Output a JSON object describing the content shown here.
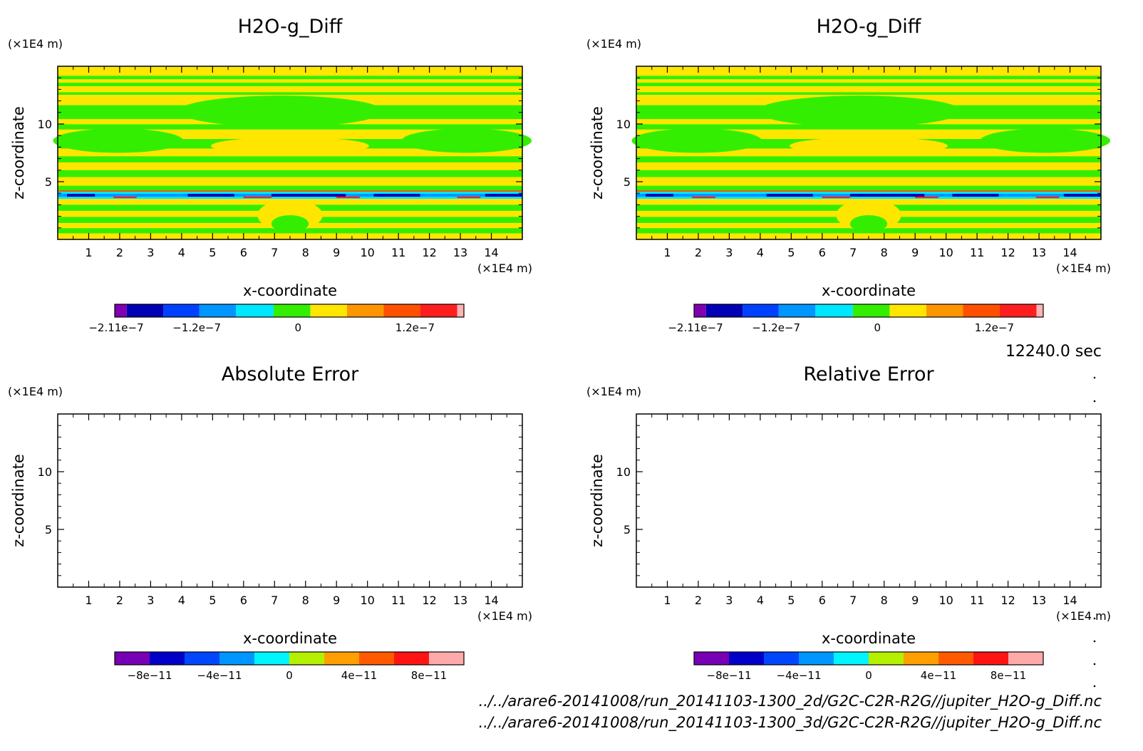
{
  "panels": [
    {
      "title": "H2O-g_Diff",
      "xlabel": "x-coordinate",
      "ylabel": "z-coordinate",
      "x_unit": "(×1E4 m)",
      "y_unit": "(×1E4 m)",
      "x_ticks": [
        "1",
        "2",
        "3",
        "4",
        "5",
        "6",
        "7",
        "8",
        "9",
        "10",
        "11",
        "12",
        "13",
        "14"
      ],
      "y_ticks": [
        "5",
        "10"
      ],
      "colorbar_labels": [
        "−2.11e−7",
        "−1.2e−7",
        "0",
        "1.2e−7"
      ],
      "filled": true
    },
    {
      "title": "H2O-g_Diff",
      "xlabel": "x-coordinate",
      "ylabel": "z-coordinate",
      "x_unit": "(×1E4 m)",
      "y_unit": "(×1E4 m)",
      "x_ticks": [
        "1",
        "2",
        "3",
        "4",
        "5",
        "6",
        "7",
        "8",
        "9",
        "10",
        "11",
        "12",
        "13",
        "14"
      ],
      "y_ticks": [
        "5",
        "10"
      ],
      "colorbar_labels": [
        "−2.11e−7",
        "−1.2e−7",
        "0",
        "1.2e−7"
      ],
      "filled": true
    },
    {
      "title": "Absolute Error",
      "xlabel": "x-coordinate",
      "ylabel": "z-coordinate",
      "x_unit": "(×1E4 m)",
      "y_unit": "(×1E4 m)",
      "x_ticks": [
        "1",
        "2",
        "3",
        "4",
        "5",
        "6",
        "7",
        "8",
        "9",
        "10",
        "11",
        "12",
        "13",
        "14"
      ],
      "y_ticks": [
        "5",
        "10"
      ],
      "colorbar_labels": [
        "−8e−11",
        "−4e−11",
        "0",
        "4e−11",
        "8e−11"
      ],
      "filled": false
    },
    {
      "title": "Relative Error",
      "xlabel": "x-coordinate",
      "ylabel": "z-coordinate",
      "x_unit": "(×1E4 m)",
      "y_unit": "(×1E4 m)",
      "x_ticks": [
        "1",
        "2",
        "3",
        "4",
        "5",
        "6",
        "7",
        "8",
        "9",
        "10",
        "11",
        "12",
        "13",
        "14"
      ],
      "y_ticks": [
        "5",
        "10"
      ],
      "colorbar_labels": [
        "−8e−11",
        "−4e−11",
        "0",
        "4e−11",
        "8e−11"
      ],
      "filled": false
    }
  ],
  "time_label": "12240.0 sec",
  "file_paths": [
    "../../arare6-20141008/run_20141103-1300_2d/G2C-C2R-R2G//jupiter_H2O-g_Diff.nc",
    "../../arare6-20141008/run_20141103-1300_3d/G2C-C2R-R2G//jupiter_H2O-g_Diff.nc"
  ],
  "colors": {
    "diff_colorbar": [
      "#8000b0",
      "#0000b4",
      "#0040ff",
      "#0096ff",
      "#00e6ff",
      "#33ee00",
      "#ffe600",
      "#ff9600",
      "#ff5000",
      "#ff1e1e",
      "#ffb4b4"
    ],
    "error_colorbar": [
      "#7800b4",
      "#0000c8",
      "#0046ff",
      "#0096ff",
      "#00f5ff",
      "#b4f000",
      "#ffa000",
      "#ff5a00",
      "#ff1414",
      "#ffaaaa"
    ],
    "field_green": "#33ee00",
    "field_yellow": "#ffe600"
  },
  "chart_data": [
    {
      "type": "heatmap",
      "title": "H2O-g_Diff",
      "xlabel": "x-coordinate",
      "ylabel": "z-coordinate",
      "xlim": [
        0,
        15
      ],
      "ylim": [
        0,
        15
      ],
      "colorbar_ticks": [
        -2.11e-07,
        -1.2e-07,
        0,
        1.2e-07
      ],
      "colorbar_range": [
        -2.11e-07,
        2.11e-07
      ],
      "description_values": "field mostly alternating near-zero bands (green ≈ slightly negative, yellow ≈ slightly positive) with strong signed values near z ≈ 3.5"
    },
    {
      "type": "heatmap",
      "title": "H2O-g_Diff",
      "xlabel": "x-coordinate",
      "ylabel": "z-coordinate",
      "xlim": [
        0,
        15
      ],
      "ylim": [
        0,
        15
      ],
      "colorbar_ticks": [
        -2.11e-07,
        -1.2e-07,
        0,
        1.2e-07
      ],
      "colorbar_range": [
        -2.11e-07,
        2.11e-07
      ]
    },
    {
      "type": "heatmap",
      "title": "Absolute Error",
      "xlabel": "x-coordinate",
      "ylabel": "z-coordinate",
      "xlim": [
        0,
        15
      ],
      "ylim": [
        0,
        15
      ],
      "colorbar_ticks": [
        -8e-11,
        -4e-11,
        0,
        4e-11,
        8e-11
      ],
      "colorbar_range": [
        -1e-10,
        1e-10
      ],
      "values": "all zero (blank field)"
    },
    {
      "type": "heatmap",
      "title": "Relative Error",
      "xlabel": "x-coordinate",
      "ylabel": "z-coordinate",
      "xlim": [
        0,
        15
      ],
      "ylim": [
        0,
        15
      ],
      "colorbar_ticks": [
        -8e-11,
        -4e-11,
        0,
        4e-11,
        8e-11
      ],
      "colorbar_range": [
        -1e-10,
        1e-10
      ],
      "values": "all zero (blank field)"
    }
  ]
}
